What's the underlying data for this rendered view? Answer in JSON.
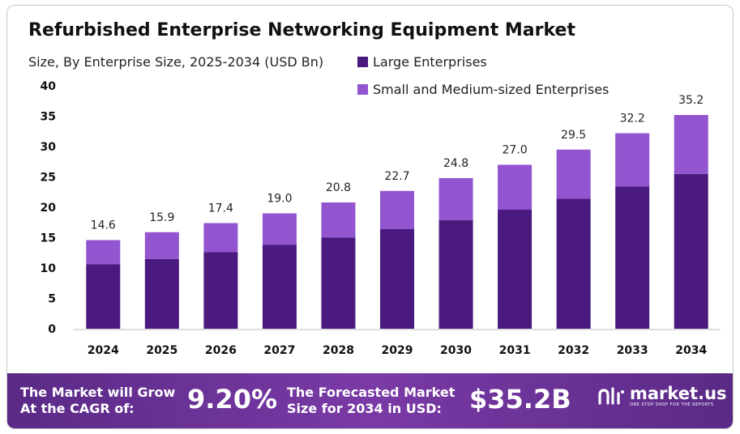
{
  "chart_data": {
    "type": "bar",
    "stacked": true,
    "title": "Refurbished Enterprise Networking Equipment Market",
    "subtitle": "Size, By Enterprise Size, 2025-2034 (USD Bn)",
    "categories": [
      "2024",
      "2025",
      "2026",
      "2027",
      "2028",
      "2029",
      "2030",
      "2031",
      "2032",
      "2033",
      "2034"
    ],
    "series": [
      {
        "name": "Large Enterprises",
        "color": "#4a1a7f",
        "values": [
          10.6,
          11.5,
          12.6,
          13.8,
          15.0,
          16.4,
          17.9,
          19.6,
          21.4,
          23.4,
          25.5
        ]
      },
      {
        "name": "Small and Medium-sized Enterprises",
        "color": "#9355cf",
        "values": [
          4.0,
          4.4,
          4.8,
          5.2,
          5.8,
          6.3,
          6.9,
          7.4,
          8.1,
          8.8,
          9.7
        ]
      }
    ],
    "totals": [
      14.6,
      15.9,
      17.4,
      19.0,
      20.8,
      22.7,
      24.8,
      27.0,
      29.5,
      32.2,
      35.2
    ],
    "total_labels": [
      "14.6",
      "15.9",
      "17.4",
      "19.0",
      "20.8",
      "22.7",
      "24.8",
      "27.0",
      "29.5",
      "32.2",
      "35.2"
    ],
    "ylim": [
      0,
      40
    ],
    "yticks": [
      0,
      5,
      10,
      15,
      20,
      25,
      30,
      35,
      40
    ],
    "xlabel": "",
    "ylabel": "",
    "legend_position": "top-right"
  },
  "footer": {
    "cagr_line1": "The Market will Grow",
    "cagr_line2": "At the CAGR of:",
    "cagr_value": "9.20%",
    "forecast_line1": "The Forecasted Market",
    "forecast_line2": "Size for 2034 in USD:",
    "forecast_value": "$35.2B",
    "brand_name": "market.us",
    "brand_tagline": "ONE STOP SHOP FOR THE REPORTS"
  },
  "colors": {
    "large": "#4a1a7f",
    "sme": "#9355cf",
    "footer_bg": "#6a2f96"
  }
}
